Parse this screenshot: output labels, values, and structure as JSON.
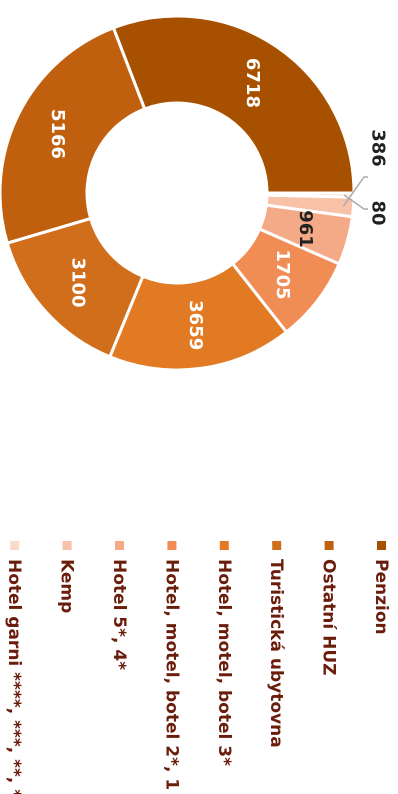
{
  "chart_data": {
    "type": "pie",
    "donut": true,
    "orientation": "rotated-90-clockwise",
    "categories": [
      "Penzion",
      "Ostatní HUZ",
      "Turistická ubytovna",
      "Hotel, motel, botel 3*",
      "Hotel, motel, botel 2*, 1",
      "Hotel 5*, 4*",
      "Kemp",
      "Hotel garni ****, ***, **, *"
    ],
    "values": [
      6718,
      5166,
      3100,
      3659,
      1705,
      961,
      386,
      80
    ],
    "value_labels": [
      "6718",
      "5166",
      "3100",
      "3659",
      "1705",
      "961",
      "386",
      "80"
    ],
    "colors": [
      "#a65000",
      "#c0600f",
      "#d06e1c",
      "#e27a24",
      "#f08d55",
      "#f4aa86",
      "#f7c2a8",
      "#fadbc8"
    ],
    "title": "",
    "legend_position": "right"
  }
}
